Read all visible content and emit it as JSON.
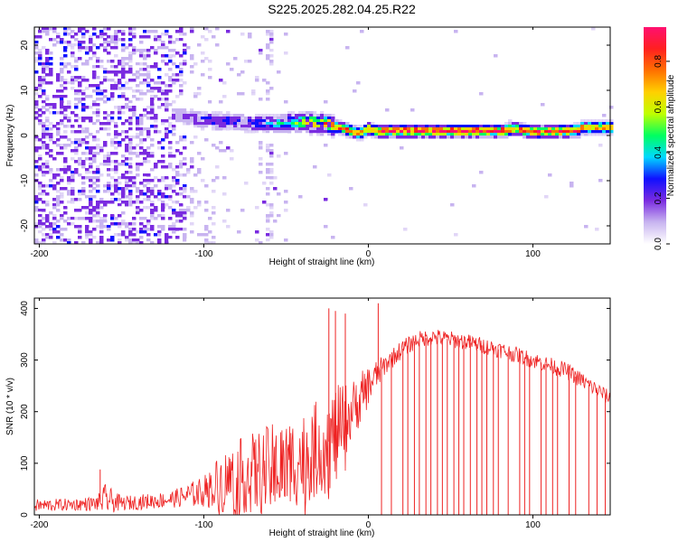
{
  "title": "S225.2025.282.04.25.R22",
  "chart_data": [
    {
      "type": "heatmap",
      "name": "spectrogram",
      "xlabel": "Height of straight line (km)",
      "ylabel": "Frequency (Hz)",
      "xlim": [
        -203,
        147
      ],
      "ylim": [
        -24,
        24
      ],
      "xticks": [
        -200,
        -100,
        0,
        100
      ],
      "yticks": [
        -20,
        -10,
        0,
        10,
        20
      ],
      "xtick_labels": [
        "-200",
        "-100",
        "0",
        "100"
      ],
      "ytick_labels": [
        "-20",
        "-10",
        "0",
        "10",
        "20"
      ],
      "colorbar": {
        "label": "Normalized spectral amplitude",
        "range": [
          0,
          0.95
        ],
        "ticks": [
          0.0,
          0.2,
          0.4,
          0.6,
          0.8
        ],
        "tick_labels": [
          "0.0",
          "0.2",
          "0.4",
          "0.6",
          "0.8"
        ],
        "colors": [
          "#ffffff",
          "#c8b4f0",
          "#7a2be0",
          "#1010ff",
          "#00d8ff",
          "#00ff60",
          "#c0ff00",
          "#ffd000",
          "#ff7000",
          "#ff2020",
          "#ff1070"
        ]
      },
      "carrier_track": {
        "x": [
          -115,
          -100,
          -80,
          -60,
          -40,
          -25,
          -15,
          -5,
          0,
          5,
          20,
          40,
          60,
          80,
          90,
          100,
          120,
          128,
          130,
          147
        ],
        "freq": [
          4.5,
          3.5,
          3,
          2.5,
          3,
          2.5,
          1.5,
          0.5,
          1.5,
          1,
          1,
          1,
          1,
          1,
          1.5,
          0.8,
          1,
          1.2,
          1.8,
          1.8
        ],
        "amplitude": [
          0.15,
          0.25,
          0.25,
          0.3,
          0.55,
          0.7,
          0.8,
          0.75,
          0.7,
          0.8,
          0.9,
          0.9,
          0.9,
          0.85,
          0.8,
          0.85,
          0.85,
          0.8,
          0.7,
          0.7
        ]
      }
    },
    {
      "type": "line",
      "name": "snr",
      "xlabel": "Height of straight line (km)",
      "ylabel": "SNR (10 * v/v)",
      "xlim": [
        -203,
        147
      ],
      "ylim": [
        0,
        420
      ],
      "xticks": [
        -200,
        -100,
        0,
        100
      ],
      "yticks": [
        0,
        100,
        200,
        300,
        400
      ],
      "xtick_labels": [
        "-200",
        "-100",
        "0",
        "100"
      ],
      "ytick_labels": [
        "0",
        "100",
        "200",
        "300",
        "400"
      ],
      "color": "#ee2222",
      "envelope": {
        "x": [
          -203,
          -180,
          -165,
          -160,
          -150,
          -120,
          -100,
          -90,
          -80,
          -60,
          -40,
          -20,
          -10,
          0,
          10,
          20,
          30,
          40,
          60,
          80,
          100,
          120,
          130,
          140,
          147
        ],
        "mean": [
          18,
          20,
          22,
          30,
          22,
          30,
          45,
          60,
          75,
          85,
          110,
          150,
          200,
          250,
          290,
          320,
          340,
          345,
          335,
          320,
          300,
          280,
          260,
          240,
          225
        ],
        "spread": [
          12,
          12,
          14,
          30,
          14,
          16,
          30,
          60,
          70,
          90,
          90,
          100,
          60,
          40,
          20,
          18,
          16,
          16,
          16,
          16,
          16,
          16,
          16,
          16,
          14
        ]
      },
      "spikes": [
        {
          "x": -163,
          "y": 88
        },
        {
          "x": -24,
          "y": 400
        },
        {
          "x": -20,
          "y": 395
        },
        {
          "x": -14,
          "y": 390
        },
        {
          "x": 6,
          "y": 410
        }
      ],
      "dropouts_x": [
        8,
        14,
        21,
        24,
        28,
        31,
        35,
        38,
        42,
        45,
        48,
        52,
        55,
        58,
        62,
        66,
        69,
        72,
        76,
        79,
        85,
        92,
        95,
        98,
        105,
        108,
        112,
        115,
        122,
        126,
        134,
        139,
        144
      ]
    }
  ]
}
